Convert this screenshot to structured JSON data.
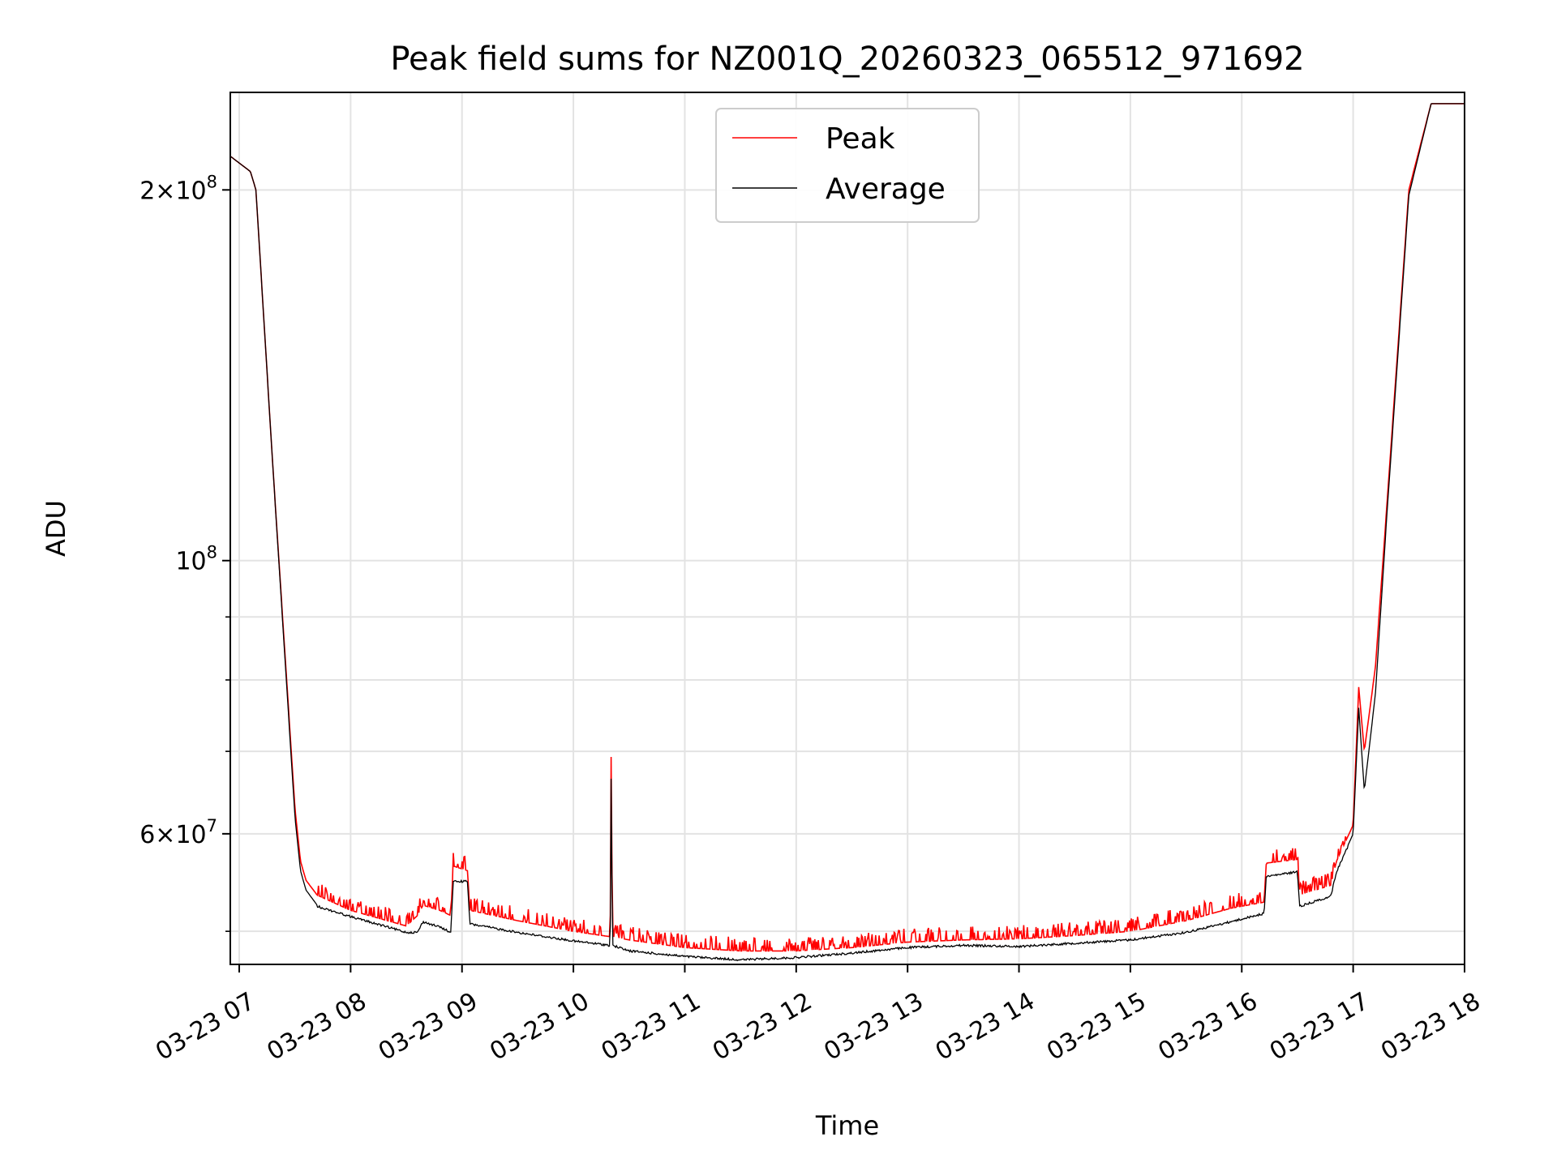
{
  "chart_data": {
    "type": "line",
    "title": "Peak field sums for NZ001Q_20260323_065512_971692",
    "xlabel": "Time",
    "ylabel": "ADU",
    "y_scale": "log",
    "ylim": [
      47000000,
      240000000
    ],
    "xlim_hours": [
      6.92,
      18.0
    ],
    "x_tick_hours": [
      7,
      8,
      9,
      10,
      11,
      12,
      13,
      14,
      15,
      16,
      17,
      18
    ],
    "x_tick_labels": [
      "03-23 07",
      "03-23 08",
      "03-23 09",
      "03-23 10",
      "03-23 11",
      "03-23 12",
      "03-23 13",
      "03-23 14",
      "03-23 15",
      "03-23 16",
      "03-23 17",
      "03-23 18"
    ],
    "y_ticks": [
      {
        "value": 200000000,
        "label": "2×10⁸",
        "mantissa": "2",
        "exponent": "8"
      },
      {
        "value": 100000000,
        "label": "10⁸",
        "mantissa": "",
        "exponent": "8"
      },
      {
        "value": 60000000,
        "label": "6×10⁷",
        "mantissa": "6",
        "exponent": "7"
      }
    ],
    "y_minor_ticks": [
      50000000,
      70000000,
      80000000,
      90000000
    ],
    "grid": true,
    "legend_position": "top-center",
    "series": [
      {
        "name": "Peak",
        "color": "#ff0000",
        "noise": "spiky",
        "x_hours": [
          6.92,
          7.1,
          7.15,
          7.3,
          7.5,
          7.55,
          7.6,
          7.7,
          8.0,
          8.5,
          8.6,
          8.65,
          8.8,
          8.9,
          8.92,
          9.05,
          9.07,
          9.5,
          10.0,
          10.33,
          10.34,
          10.35,
          10.5,
          11.0,
          11.5,
          12.0,
          12.5,
          13.0,
          13.5,
          14.0,
          14.5,
          15.0,
          15.5,
          15.9,
          16.2,
          16.22,
          16.5,
          16.52,
          16.8,
          16.85,
          17.0,
          17.05,
          17.1,
          17.2,
          17.3,
          17.5,
          17.7,
          17.75,
          18.0
        ],
        "values": [
          213000000,
          207000000,
          200000000,
          120000000,
          63000000,
          57000000,
          55000000,
          53500000,
          52000000,
          50500000,
          51500000,
          52500000,
          52000000,
          51500000,
          56500000,
          56000000,
          52000000,
          51000000,
          50000000,
          49500000,
          72000000,
          49500000,
          49200000,
          48500000,
          48200000,
          48200000,
          48500000,
          49000000,
          49200000,
          49300000,
          49600000,
          50000000,
          51000000,
          52200000,
          52800000,
          56800000,
          57200000,
          53500000,
          54500000,
          57000000,
          61000000,
          79000000,
          70000000,
          82000000,
          110000000,
          200000000,
          235000000,
          235000000,
          235000000
        ]
      },
      {
        "name": "Average",
        "color": "#000000",
        "noise": "smooth",
        "x_hours": [
          6.92,
          7.1,
          7.15,
          7.3,
          7.5,
          7.55,
          7.6,
          7.7,
          8.0,
          8.5,
          8.6,
          8.65,
          8.8,
          8.9,
          8.92,
          9.05,
          9.07,
          9.5,
          10.0,
          10.33,
          10.34,
          10.35,
          10.5,
          11.0,
          11.5,
          12.0,
          12.5,
          13.0,
          13.5,
          14.0,
          14.5,
          15.0,
          15.5,
          15.9,
          16.2,
          16.22,
          16.5,
          16.52,
          16.8,
          16.85,
          17.0,
          17.05,
          17.1,
          17.2,
          17.3,
          17.5,
          17.7,
          17.75,
          18.0
        ],
        "values": [
          213000000,
          207000000,
          200000000,
          120000000,
          62000000,
          56000000,
          54000000,
          52500000,
          51500000,
          50000000,
          50000000,
          51000000,
          50500000,
          50000000,
          55000000,
          55000000,
          50800000,
          50000000,
          49200000,
          48800000,
          69000000,
          48800000,
          48300000,
          47800000,
          47500000,
          47700000,
          48100000,
          48600000,
          48800000,
          48700000,
          49000000,
          49300000,
          50000000,
          51000000,
          51800000,
          55500000,
          56000000,
          52500000,
          53500000,
          56000000,
          60000000,
          76000000,
          65000000,
          78000000,
          108000000,
          198000000,
          235000000,
          235000000,
          235000000
        ]
      }
    ]
  }
}
